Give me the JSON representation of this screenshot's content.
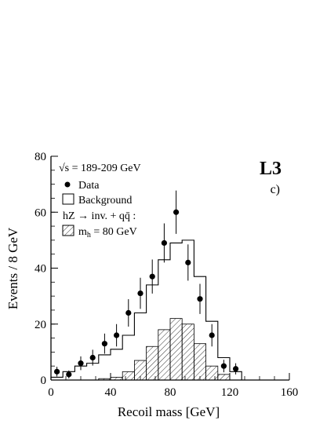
{
  "chart_data": {
    "type": "histogram",
    "xlabel": "Recoil mass  [GeV]",
    "ylabel": "Events / 8 GeV",
    "xlim": [
      0,
      160
    ],
    "ylim": [
      0,
      80
    ],
    "x_ticks": [
      "0",
      "40",
      "80",
      "120",
      "160"
    ],
    "y_ticks": [
      "0",
      "20",
      "40",
      "60",
      "80"
    ],
    "energy_label": "√s = 189-209 GeV",
    "experiment_label": "L3",
    "panel_label": "c)",
    "legend": {
      "data": "Data",
      "background": "Background",
      "signal_process": "hZ → inv. + qq̄ :",
      "signal_mass": "m",
      "signal_mass_subscript": "h",
      "signal_mass_value": " = 80 GeV"
    },
    "bin_width": 8,
    "bin_edges": [
      0,
      8,
      16,
      24,
      32,
      40,
      48,
      56,
      64,
      72,
      80,
      88,
      96,
      104,
      112,
      120,
      128
    ],
    "background": [
      1,
      3,
      5,
      6,
      9,
      11,
      16,
      24,
      34,
      43,
      49,
      50,
      37,
      21,
      8,
      3
    ],
    "signal": [
      0,
      0,
      0,
      0,
      0.5,
      1,
      3,
      7,
      12,
      18,
      22,
      20,
      13,
      5,
      2,
      0
    ],
    "data": {
      "x": [
        4,
        12,
        20,
        28,
        36,
        44,
        52,
        60,
        68,
        76,
        84,
        92,
        100,
        108,
        116,
        124
      ],
      "y": [
        3,
        2,
        6,
        8,
        13,
        16,
        24,
        31,
        37,
        49,
        60,
        42,
        29,
        16,
        5,
        4
      ]
    }
  }
}
